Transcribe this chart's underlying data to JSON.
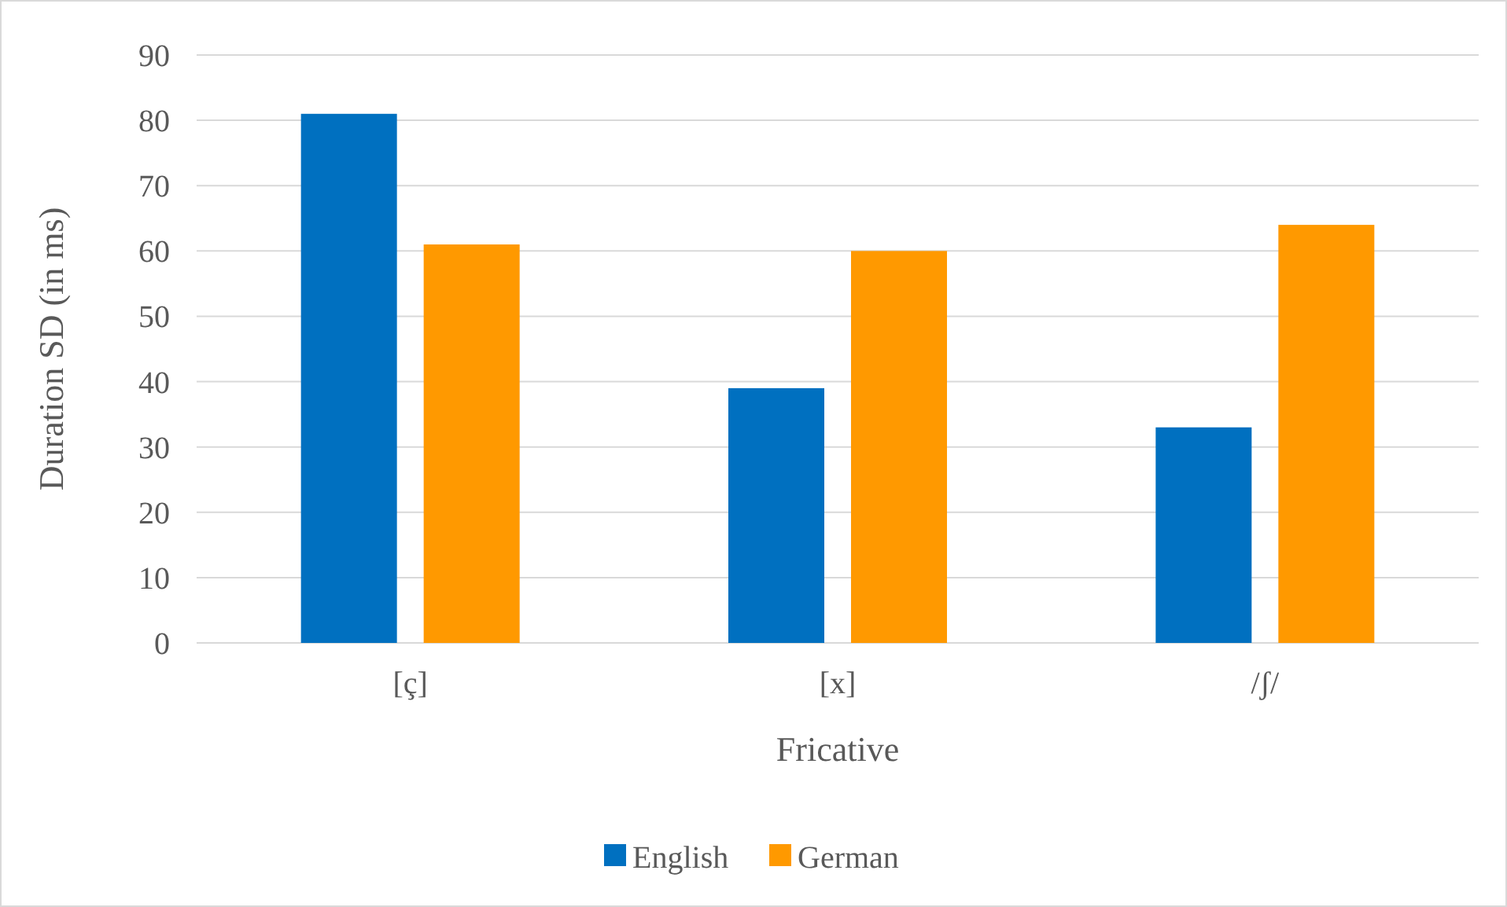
{
  "chart_data": {
    "type": "bar",
    "xlabel": "Fricative",
    "ylabel": "Duration SD (in ms)",
    "categories": [
      "[ç]",
      "[x]",
      "/ʃ/"
    ],
    "series": [
      {
        "name": "English",
        "color": "#0070c0",
        "values": [
          81,
          39,
          33
        ]
      },
      {
        "name": "German",
        "color": "#ff9900",
        "values": [
          61,
          60,
          64
        ]
      }
    ],
    "ylim": [
      0,
      90
    ],
    "yticks": [
      0,
      10,
      20,
      30,
      40,
      50,
      60,
      70,
      80,
      90
    ],
    "grid": "y",
    "legend": "bottom"
  }
}
